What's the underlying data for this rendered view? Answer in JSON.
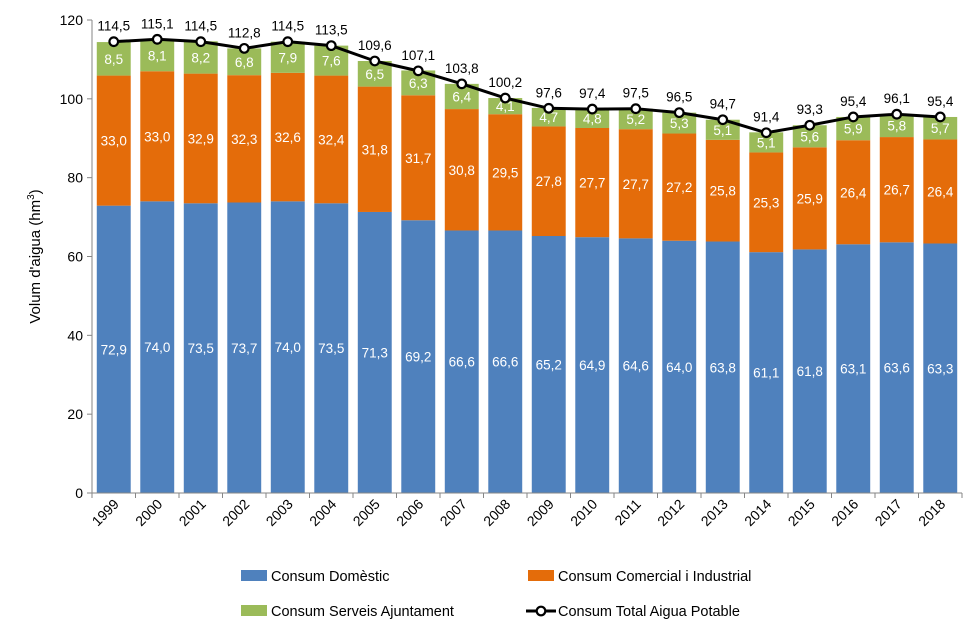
{
  "chart_data": {
    "type": "bar",
    "stacked": true,
    "categories": [
      "1999",
      "2000",
      "2001",
      "2002",
      "2003",
      "2004",
      "2005",
      "2006",
      "2007",
      "2008",
      "2009",
      "2010",
      "2011",
      "2012",
      "2013",
      "2014",
      "2015",
      "2016",
      "2017",
      "2018"
    ],
    "series": [
      {
        "name": "Consum Domèstic",
        "color": "#4f81bd",
        "values": [
          72.9,
          74.0,
          73.5,
          73.7,
          74.0,
          73.5,
          71.3,
          69.2,
          66.6,
          66.6,
          65.2,
          64.9,
          64.6,
          64.0,
          63.8,
          61.1,
          61.8,
          63.1,
          63.6,
          63.3
        ],
        "labels": [
          "72,9",
          "74,0",
          "73,5",
          "73,7",
          "74,0",
          "73,5",
          "71,3",
          "69,2",
          "66,6",
          "66,6",
          "65,2",
          "64,9",
          "64,6",
          "64,0",
          "63,8",
          "61,1",
          "61,8",
          "63,1",
          "63,6",
          "63,3"
        ]
      },
      {
        "name": "Consum Comercial i Industrial",
        "color": "#e46c0a",
        "values": [
          33.0,
          33.0,
          32.9,
          32.3,
          32.6,
          32.4,
          31.8,
          31.7,
          30.8,
          29.5,
          27.8,
          27.7,
          27.7,
          27.2,
          25.8,
          25.3,
          25.9,
          26.4,
          26.7,
          26.4
        ],
        "labels": [
          "33,0",
          "33,0",
          "32,9",
          "32,3",
          "32,6",
          "32,4",
          "31,8",
          "31,7",
          "30,8",
          "29,5",
          "27,8",
          "27,7",
          "27,7",
          "27,2",
          "25,8",
          "25,3",
          "25,9",
          "26,4",
          "26,7",
          "26,4"
        ]
      },
      {
        "name": "Consum Serveis Ajuntament",
        "color": "#9bbb59",
        "values": [
          8.5,
          8.1,
          8.2,
          6.8,
          7.9,
          7.6,
          6.5,
          6.3,
          6.4,
          4.1,
          4.7,
          4.8,
          5.2,
          5.3,
          5.1,
          5.1,
          5.6,
          5.9,
          5.8,
          5.7
        ],
        "labels": [
          "8,5",
          "8,1",
          "8,2",
          "6,8",
          "7,9",
          "7,6",
          "6,5",
          "6,3",
          "6,4",
          "4,1",
          "4,7",
          "4,8",
          "5,2",
          "5,3",
          "5,1",
          "5,1",
          "5,6",
          "5,9",
          "5,8",
          "5,7"
        ]
      }
    ],
    "total": {
      "name": "Consum Total Aigua Potable",
      "color": "#000000",
      "type": "line",
      "values": [
        114.5,
        115.1,
        114.5,
        112.8,
        114.5,
        113.5,
        109.6,
        107.1,
        103.8,
        100.2,
        97.6,
        97.4,
        97.5,
        96.5,
        94.7,
        91.4,
        93.3,
        95.4,
        96.1,
        95.4
      ],
      "labels": [
        "114,5",
        "115,1",
        "114,5",
        "112,8",
        "114,5",
        "113,5",
        "109,6",
        "107,1",
        "103,8",
        "100,2",
        "97,6",
        "97,4",
        "97,5",
        "96,5",
        "94,7",
        "91,4",
        "93,3",
        "95,4",
        "96,1",
        "95,4"
      ]
    },
    "ylabel_main": "Volum d'aigua (hm",
    "ylabel_sup": "3",
    "ylabel_close": ")",
    "ylim": [
      0,
      120
    ],
    "yticks": [
      0,
      20,
      40,
      60,
      80,
      100,
      120
    ],
    "ytick_labels": [
      "0",
      "20",
      "40",
      "60",
      "80",
      "100",
      "120"
    ],
    "grid": false,
    "legend_position": "bottom"
  }
}
